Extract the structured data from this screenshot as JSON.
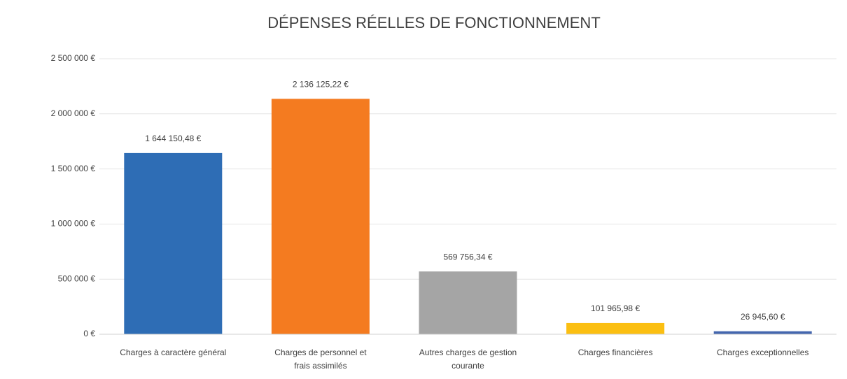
{
  "chart_data": {
    "type": "bar",
    "title": "DÉPENSES RÉELLES DE FONCTIONNEMENT",
    "categories": [
      "Charges à caractère général",
      "Charges de personnel et frais assimilés",
      "Autres charges de gestion courante",
      "Charges financières",
      "Charges exceptionnelles"
    ],
    "values": [
      1644150.48,
      2136125.22,
      569756.34,
      101965.98,
      26945.6
    ],
    "value_labels": [
      "1 644 150,48 €",
      "2 136 125,22 €",
      "569 756,34 €",
      "101 965,98 €",
      "26 945,60 €"
    ],
    "colors": [
      "#2e6db5",
      "#f47b20",
      "#a5a5a5",
      "#fbbf12",
      "#4466ae"
    ],
    "ylim": [
      0,
      2500000
    ],
    "yticks": [
      {
        "value": 0,
        "label": "0 €"
      },
      {
        "value": 500000,
        "label": "500 000 €"
      },
      {
        "value": 1000000,
        "label": "1 000 000 €"
      },
      {
        "value": 1500000,
        "label": "1 500 000 €"
      },
      {
        "value": 2000000,
        "label": "2 000 000 €"
      },
      {
        "value": 2500000,
        "label": "2 500 000 €"
      }
    ],
    "grid": true
  }
}
